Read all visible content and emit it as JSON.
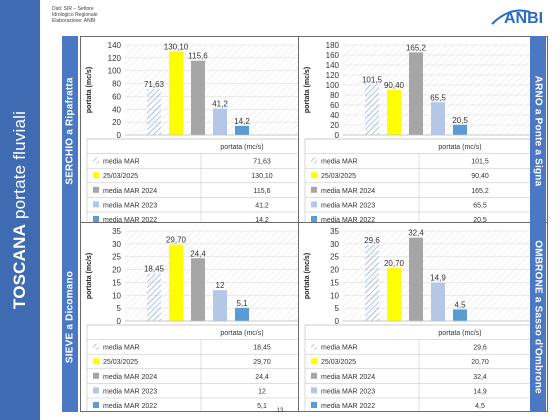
{
  "page": {
    "side_title_bold": "TOSCANA",
    "side_title_rest": " portate fluviali",
    "source_lines": [
      "Dati: SIR – Settore",
      "Idrologico Regionale",
      "Elaborazione: ANBI"
    ],
    "logo_text": "ANBI",
    "page_number": "13"
  },
  "chart_data": [
    {
      "type": "bar",
      "station": "SERCHIO a Ripafratta",
      "ylabel": "portata (mc/s)",
      "xlabel": "portata (mc/s)",
      "ylim": [
        0,
        140
      ],
      "yticks": [
        0,
        20,
        40,
        60,
        80,
        100,
        120,
        140
      ],
      "categories": [
        "media MAR",
        "25/03/2025",
        "media MAR 2024",
        "media MAR 2023",
        "media MAR 2022"
      ],
      "values": [
        71.63,
        130.1,
        115.6,
        41.2,
        14.2
      ],
      "labels": [
        "71,63",
        "130,10",
        "115,6",
        "41,2",
        "14,2"
      ]
    },
    {
      "type": "bar",
      "station": "ARNO a Ponte a Signa",
      "ylabel": "portata (mc/s)",
      "xlabel": "portata (mc/s)",
      "ylim": [
        0,
        180
      ],
      "yticks": [
        0,
        20,
        40,
        60,
        80,
        100,
        120,
        140,
        160,
        180
      ],
      "categories": [
        "media MAR",
        "25/03/2025",
        "media MAR 2024",
        "media MAR 2023",
        "media MAR 2022"
      ],
      "values": [
        101.5,
        90.4,
        165.2,
        65.5,
        20.5
      ],
      "labels": [
        "101,5",
        "90,40",
        "165,2",
        "65,5",
        "20,5"
      ]
    },
    {
      "type": "bar",
      "station": "SIEVE a Dicomano",
      "ylabel": "portata (mc/s)",
      "xlabel": "portata (mc/s)",
      "ylim": [
        0,
        35
      ],
      "yticks": [
        0,
        5,
        10,
        15,
        20,
        25,
        30,
        35
      ],
      "categories": [
        "media MAR",
        "25/03/2025",
        "media MAR 2024",
        "media MAR 2023",
        "media MAR 2022"
      ],
      "values": [
        18.45,
        29.7,
        24.4,
        12,
        5.1
      ],
      "labels": [
        "18,45",
        "29,70",
        "24,4",
        "12",
        "5,1"
      ]
    },
    {
      "type": "bar",
      "station": "OMBRONE a Sasso d'Ombrone",
      "ylabel": "portata (mc/s)",
      "xlabel": "portata (mc/s)",
      "ylim": [
        0,
        35
      ],
      "yticks": [
        0,
        5,
        10,
        15,
        20,
        25,
        30,
        35
      ],
      "categories": [
        "media MAR",
        "25/03/2025",
        "media MAR 2024",
        "media MAR 2023",
        "media MAR 2022"
      ],
      "values": [
        29.6,
        20.7,
        32.4,
        14.9,
        4.5
      ],
      "labels": [
        "29,6",
        "20,70",
        "32,4",
        "14,9",
        "4,5"
      ]
    }
  ],
  "series_colors": [
    "#a9c4e8",
    "#ffff00",
    "#a6a6a6",
    "#b4c7e7",
    "#5b9bd5"
  ]
}
